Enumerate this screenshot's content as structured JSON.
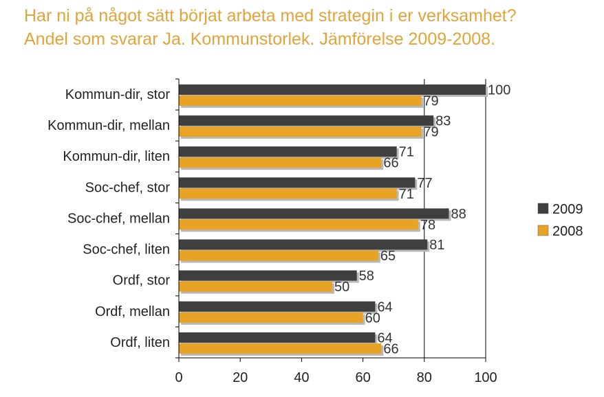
{
  "title": {
    "line1": "Har ni på något sätt börjat arbeta med strategin i er verksamhet?",
    "line2": "Andel som svarar Ja. Kommunstorlek. Jämförelse 2009-2008."
  },
  "colors": {
    "title": "#E2A43A",
    "s2009": "#3F3F3F",
    "s2008": "#E8A326",
    "shadow": "#B8B8B8"
  },
  "chart_data": {
    "type": "bar",
    "orientation": "horizontal",
    "categories": [
      "Kommun-dir, stor",
      "Kommun-dir, mellan",
      "Kommun-dir, liten",
      "Soc-chef, stor",
      "Soc-chef, mellan",
      "Soc-chef, liten",
      "Ordf, stor",
      "Ordf, mellan",
      "Ordf, liten"
    ],
    "series": [
      {
        "name": "2009",
        "values": [
          100,
          83,
          71,
          77,
          88,
          81,
          58,
          64,
          64
        ]
      },
      {
        "name": "2008",
        "values": [
          79,
          79,
          66,
          71,
          78,
          65,
          50,
          60,
          66
        ]
      }
    ],
    "xlim": [
      0,
      100
    ],
    "xticks": [
      0,
      20,
      40,
      60,
      80,
      100
    ],
    "grid": "vertical at 80 and 100",
    "legend": "right"
  }
}
